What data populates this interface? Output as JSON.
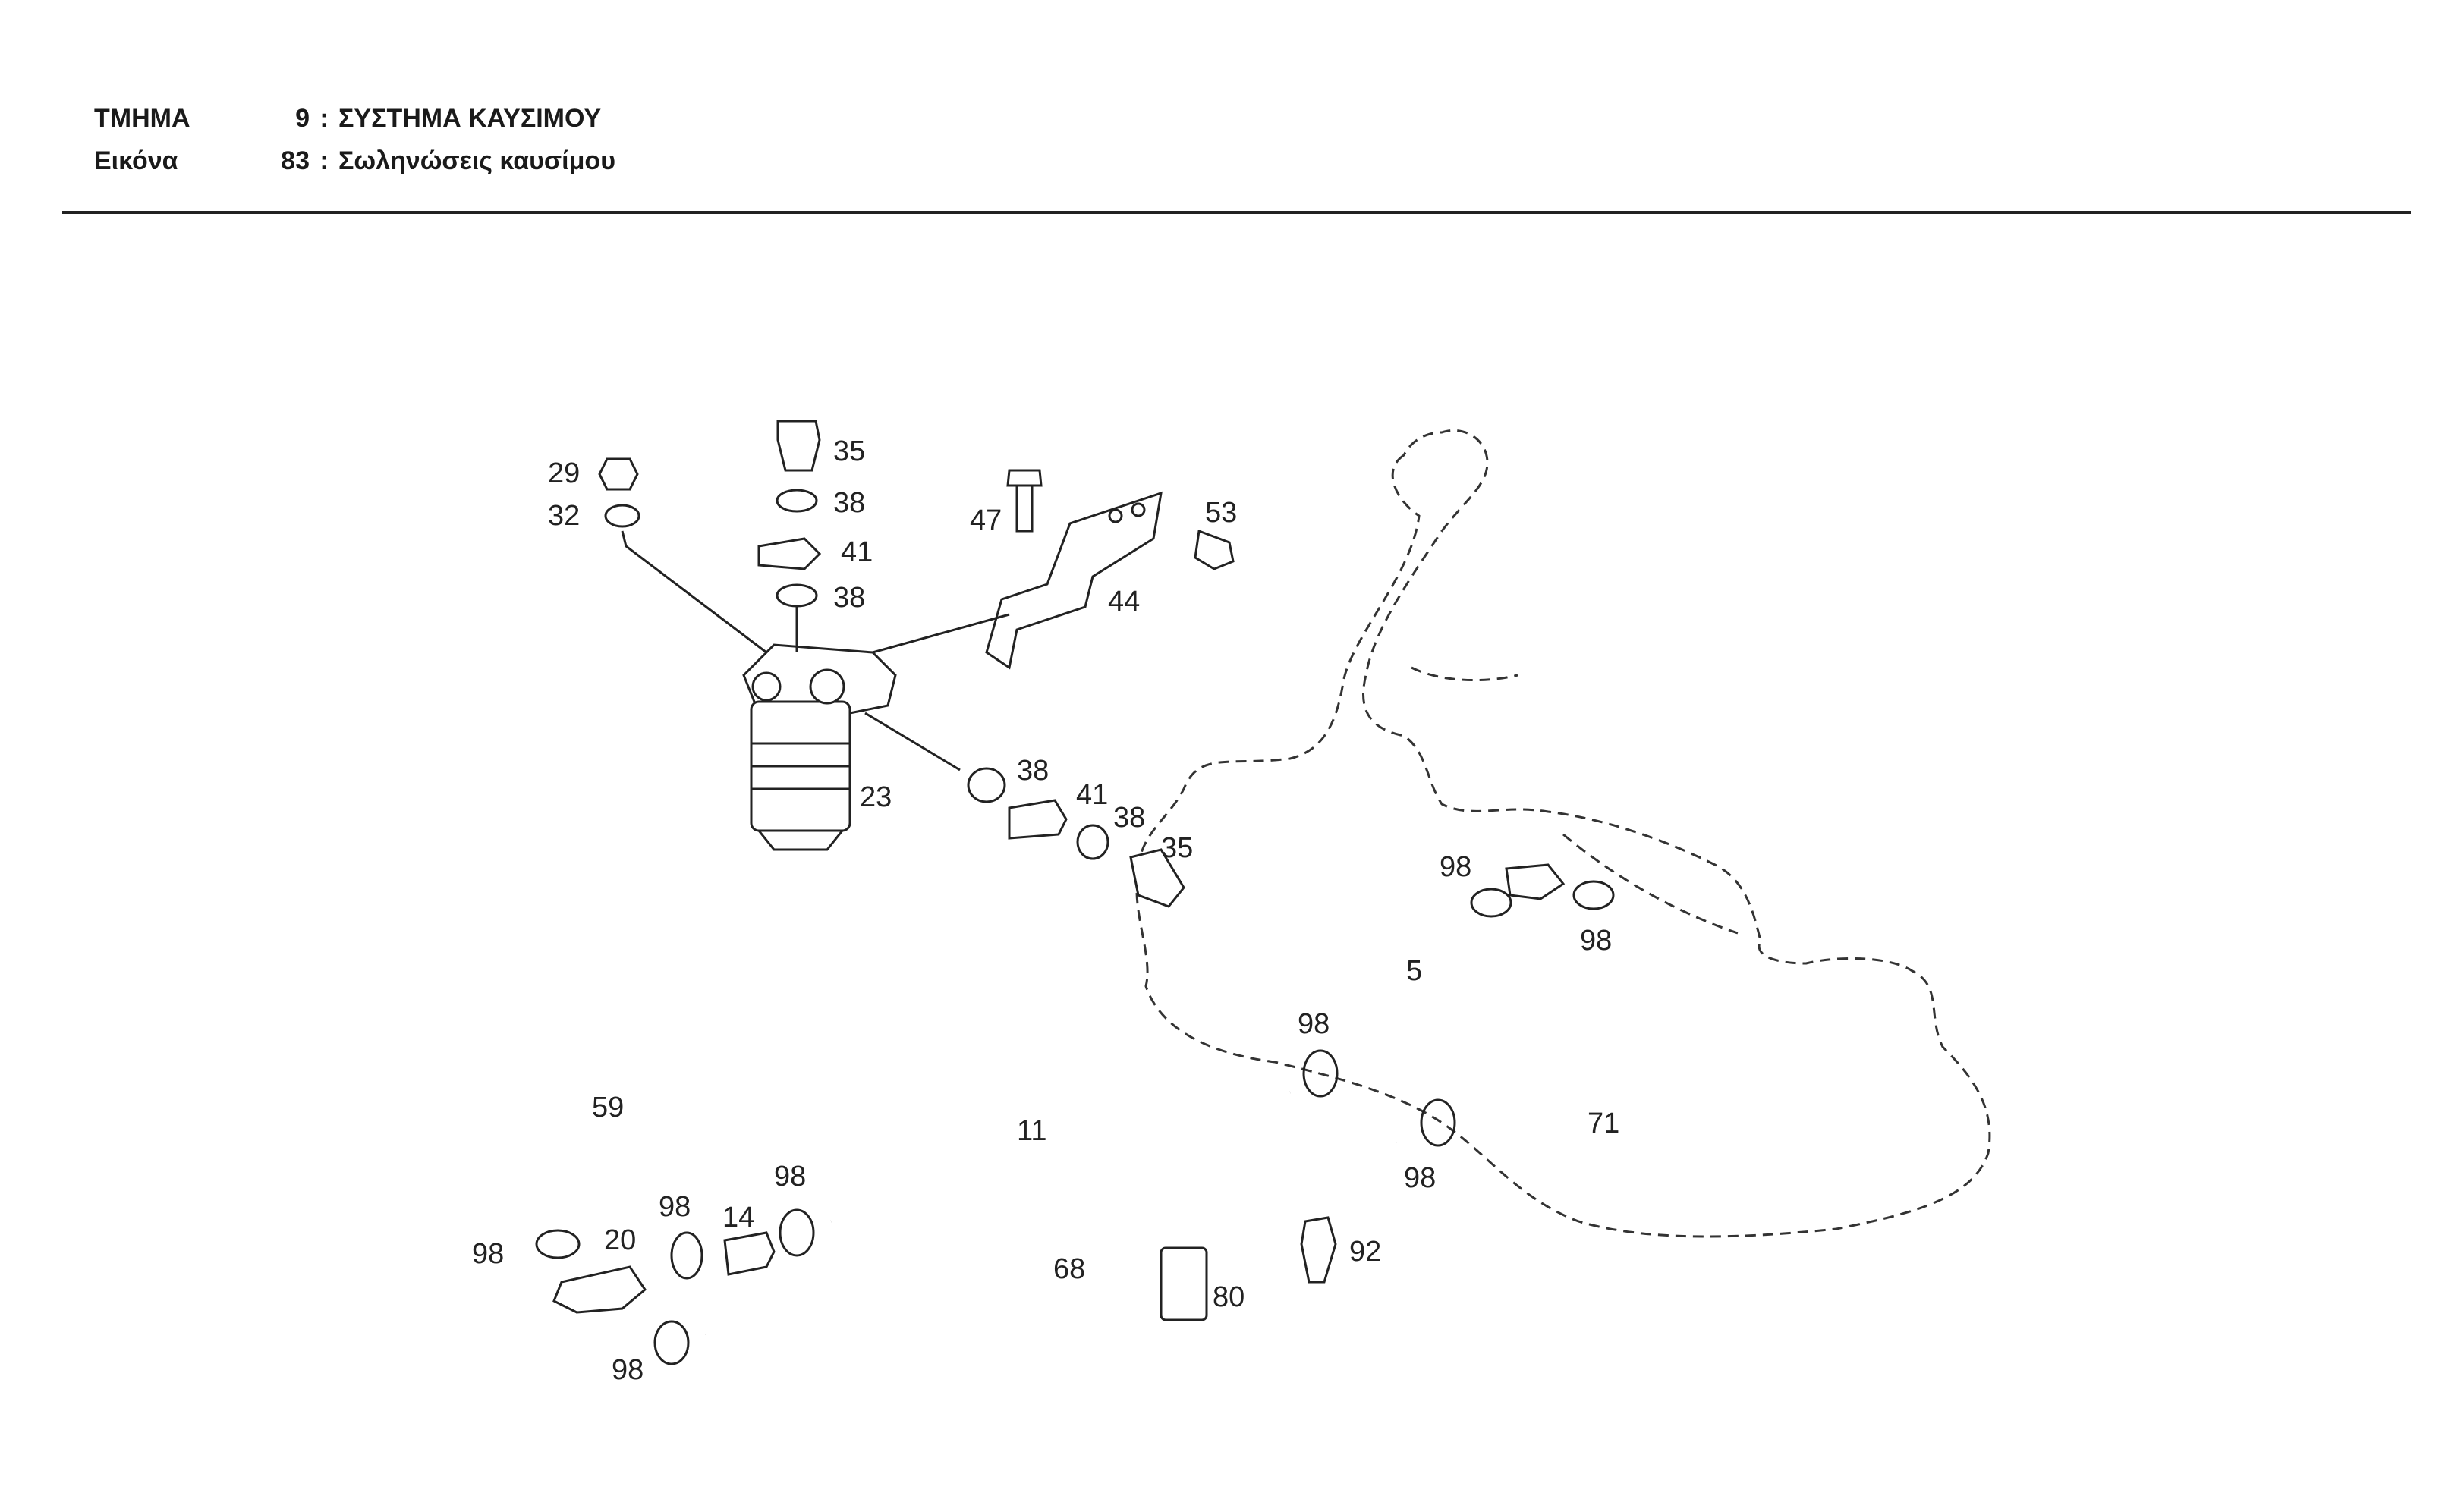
{
  "header": {
    "section_label": "ΤΜΗΜΑ",
    "section_number": "9",
    "section_title": "ΣΥΣΤΗΜΑ ΚΑΥΣΙΜΟΥ",
    "figure_label": "Εικόνα",
    "figure_number": "83",
    "figure_title": "Σωληνώσεις καυσίμου",
    "separator": ":"
  },
  "callouts": {
    "c29": "29",
    "c32": "32",
    "c35a": "35",
    "c38a": "38",
    "c41a": "41",
    "c38b": "38",
    "c47": "47",
    "c53": "53",
    "c44": "44",
    "c23": "23",
    "c38c": "38",
    "c41b": "41",
    "c38d": "38",
    "c35b": "35",
    "c98a": "98",
    "c98b": "98",
    "c5": "5",
    "c98c": "98",
    "c59": "59",
    "c11": "11",
    "c71": "71",
    "c98d": "98",
    "c98e": "98",
    "c98f": "98",
    "c14": "14",
    "c98g": "98",
    "c20": "20",
    "c68": "68",
    "c92": "92",
    "c80": "80",
    "c98h": "98"
  }
}
